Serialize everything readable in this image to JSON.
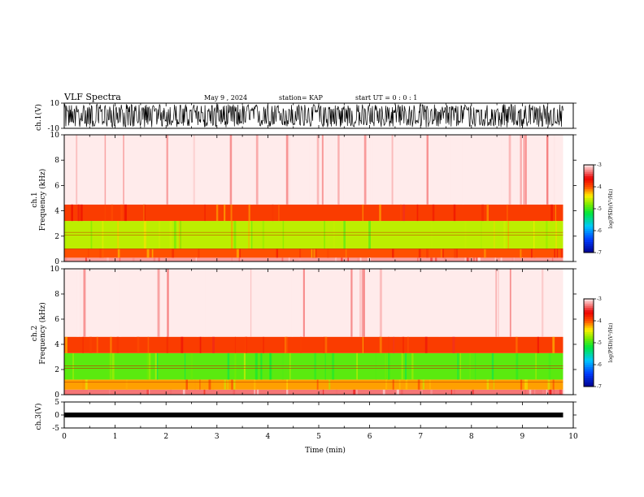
{
  "header": {
    "title": "VLF Spectra",
    "date": "May 9  , 2024",
    "station": "station= KAP",
    "start": "start  UT  =   0  :  0   : 1"
  },
  "chart_data": [
    {
      "type": "line",
      "name": "ch1-waveform",
      "ylabel": "ch.1(V)",
      "ylim": [
        -10,
        10
      ],
      "y_tick_labels": [
        "-10",
        "10"
      ],
      "xlim": [
        0,
        10
      ],
      "x_extent": 9.8
    },
    {
      "type": "heatmap",
      "name": "ch1-spectrogram",
      "ylabel": "ch.1\nFrequency  (kHz)",
      "ylabel_line1": "ch.1",
      "ylabel_line2": "Frequency  (kHz)",
      "ylim": [
        0,
        10
      ],
      "y_tick_labels": [
        "0",
        "2",
        "4",
        "6",
        "8",
        "10"
      ],
      "xlim": [
        0,
        10
      ],
      "x_extent": 9.8,
      "bands": [
        {
          "from": 0.0,
          "to": 0.3,
          "level": -3.2
        },
        {
          "from": 0.3,
          "to": 1.0,
          "level": -4.0
        },
        {
          "from": 1.0,
          "to": 3.2,
          "level": -4.6
        },
        {
          "from": 3.2,
          "to": 4.5,
          "level": -3.9
        },
        {
          "from": 4.5,
          "to": 10.0,
          "level": -3.0
        }
      ],
      "colorbar": {
        "label": "log(PSD)(V²/Hz)",
        "range": [
          -7,
          -3
        ],
        "tick_labels": [
          "-7",
          "-6",
          "-5",
          "-4",
          "-3"
        ]
      }
    },
    {
      "type": "heatmap",
      "name": "ch2-spectrogram",
      "ylabel": "ch.2\nFrequency  (kHz)",
      "ylabel_line1": "ch.2",
      "ylabel_line2": "Frequency  (kHz)",
      "ylim": [
        0,
        10
      ],
      "y_tick_labels": [
        "0",
        "2",
        "4",
        "6",
        "8",
        "10"
      ],
      "xlim": [
        0,
        10
      ],
      "x_extent": 9.8,
      "bands": [
        {
          "from": 0.0,
          "to": 0.4,
          "level": -3.3
        },
        {
          "from": 0.4,
          "to": 1.2,
          "level": -4.2
        },
        {
          "from": 1.2,
          "to": 3.3,
          "level": -4.9
        },
        {
          "from": 3.3,
          "to": 4.6,
          "level": -3.9
        },
        {
          "from": 4.6,
          "to": 10.0,
          "level": -3.0
        }
      ],
      "colorbar": {
        "label": "log(PSD)(V²/Hz)",
        "range": [
          -7,
          -3
        ],
        "tick_labels": [
          "-7",
          "-6",
          "-5",
          "-4",
          "-3"
        ]
      }
    },
    {
      "type": "line",
      "name": "ch3-waveform",
      "ylabel": "ch.3(V)",
      "ylim": [
        -5,
        5
      ],
      "y_tick_labels": [
        "-5",
        "0",
        "5"
      ],
      "xlim": [
        0,
        10
      ],
      "x_extent": 9.8,
      "xlabel": "Time  (min)",
      "x_tick_labels": [
        "0",
        "1",
        "2",
        "3",
        "4",
        "5",
        "6",
        "7",
        "8",
        "9",
        "10"
      ]
    }
  ]
}
